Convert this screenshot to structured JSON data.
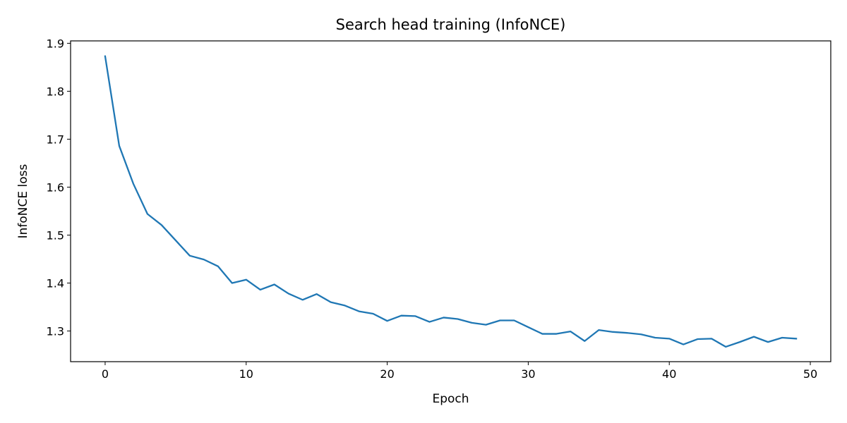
{
  "chart_data": {
    "type": "line",
    "title": "Search head training (InfoNCE)",
    "xlabel": "Epoch",
    "ylabel": "InfoNCE loss",
    "xlim": [
      -2.45,
      51.45
    ],
    "ylim": [
      1.236,
      1.905
    ],
    "xticks": [
      0,
      10,
      20,
      30,
      40,
      50
    ],
    "yticks": [
      1.3,
      1.4,
      1.5,
      1.6,
      1.7,
      1.8,
      1.9
    ],
    "grid": false,
    "legend": "none",
    "series": [
      {
        "color": "#1f77b4",
        "x": [
          0,
          1,
          2,
          3,
          4,
          5,
          6,
          7,
          8,
          9,
          10,
          11,
          12,
          13,
          14,
          15,
          16,
          17,
          18,
          19,
          20,
          21,
          22,
          23,
          24,
          25,
          26,
          27,
          28,
          29,
          30,
          31,
          32,
          33,
          34,
          35,
          36,
          37,
          38,
          39,
          40,
          41,
          42,
          43,
          44,
          45,
          46,
          47,
          48,
          49
        ],
        "y": [
          1.873,
          1.686,
          1.607,
          1.544,
          1.521,
          1.489,
          1.457,
          1.449,
          1.435,
          1.4,
          1.407,
          1.386,
          1.397,
          1.378,
          1.365,
          1.377,
          1.36,
          1.353,
          1.341,
          1.336,
          1.321,
          1.332,
          1.331,
          1.319,
          1.328,
          1.325,
          1.317,
          1.313,
          1.322,
          1.322,
          1.308,
          1.294,
          1.294,
          1.299,
          1.279,
          1.302,
          1.298,
          1.296,
          1.293,
          1.286,
          1.284,
          1.272,
          1.283,
          1.284,
          1.267,
          1.277,
          1.288,
          1.277,
          1.286,
          1.284
        ]
      }
    ]
  }
}
